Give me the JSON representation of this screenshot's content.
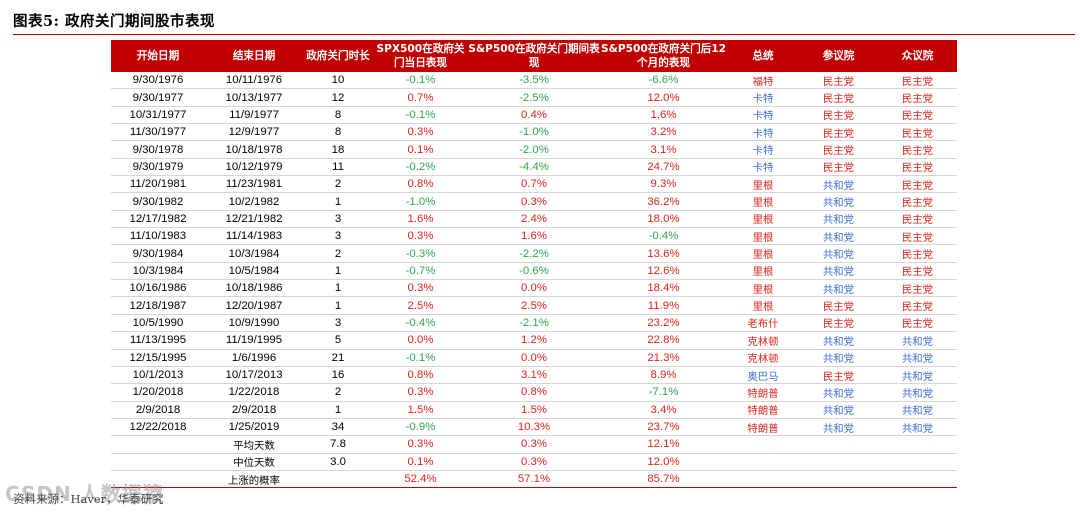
{
  "title": "图表5:   政府关门期间股市表现",
  "columns": [
    "开始日期",
    "结束日期",
    "政府关门时长",
    "SPX500在政府关门当日表现",
    "S&P500在政府关门期间表现",
    "S&P500在政府关门后12个月的表现",
    "总统",
    "参议院",
    "众议院"
  ],
  "rows": [
    [
      "9/30/1976",
      "10/11/1976",
      "10",
      "-0.1%",
      "-3.5%",
      "-6.6%",
      "福特",
      "民主党",
      "民主党"
    ],
    [
      "9/30/1977",
      "10/13/1977",
      "12",
      "0.7%",
      "-2.5%",
      "12.0%",
      "卡特",
      "民主党",
      "民主党"
    ],
    [
      "10/31/1977",
      "11/9/1977",
      "8",
      "-0.1%",
      "0.4%",
      "1.6%",
      "卡特",
      "民主党",
      "民主党"
    ],
    [
      "11/30/1977",
      "12/9/1977",
      "8",
      "0.3%",
      "-1.0%",
      "3.2%",
      "卡特",
      "民主党",
      "民主党"
    ],
    [
      "9/30/1978",
      "10/18/1978",
      "18",
      "0.1%",
      "-2.0%",
      "3.1%",
      "卡特",
      "民主党",
      "民主党"
    ],
    [
      "9/30/1979",
      "10/12/1979",
      "11",
      "-0.2%",
      "-4.4%",
      "24.7%",
      "卡特",
      "民主党",
      "民主党"
    ],
    [
      "11/20/1981",
      "11/23/1981",
      "2",
      "0.8%",
      "0.7%",
      "9.3%",
      "里根",
      "共和党",
      "民主党"
    ],
    [
      "9/30/1982",
      "10/2/1982",
      "1",
      "-1.0%",
      "0.3%",
      "36.2%",
      "里根",
      "共和党",
      "民主党"
    ],
    [
      "12/17/1982",
      "12/21/1982",
      "3",
      "1.6%",
      "2.4%",
      "18.0%",
      "里根",
      "共和党",
      "民主党"
    ],
    [
      "11/10/1983",
      "11/14/1983",
      "3",
      "0.3%",
      "1.6%",
      "-0.4%",
      "里根",
      "共和党",
      "民主党"
    ],
    [
      "9/30/1984",
      "10/3/1984",
      "2",
      "-0.3%",
      "-2.2%",
      "13.6%",
      "里根",
      "共和党",
      "民主党"
    ],
    [
      "10/3/1984",
      "10/5/1984",
      "1",
      "-0.7%",
      "-0.6%",
      "12.6%",
      "里根",
      "共和党",
      "民主党"
    ],
    [
      "10/16/1986",
      "10/18/1986",
      "1",
      "0.3%",
      "0.0%",
      "18.4%",
      "里根",
      "共和党",
      "民主党"
    ],
    [
      "12/18/1987",
      "12/20/1987",
      "1",
      "2.5%",
      "2.5%",
      "11.9%",
      "里根",
      "民主党",
      "民主党"
    ],
    [
      "10/5/1990",
      "10/9/1990",
      "3",
      "-0.4%",
      "-2.1%",
      "23.2%",
      "老布什",
      "民主党",
      "民主党"
    ],
    [
      "11/13/1995",
      "11/19/1995",
      "5",
      "0.0%",
      "1.2%",
      "22.8%",
      "克林顿",
      "共和党",
      "共和党"
    ],
    [
      "12/15/1995",
      "1/6/1996",
      "21",
      "-0.1%",
      "0.0%",
      "21.3%",
      "克林顿",
      "共和党",
      "共和党"
    ],
    [
      "10/1/2013",
      "10/17/2013",
      "16",
      "0.8%",
      "3.1%",
      "8.9%",
      "奥巴马",
      "民主党",
      "共和党"
    ],
    [
      "1/20/2018",
      "1/22/2018",
      "2",
      "0.3%",
      "0.8%",
      "-7.1%",
      "特朗普",
      "共和党",
      "共和党"
    ],
    [
      "2/9/2018",
      "2/9/2018",
      "1",
      "1.5%",
      "1.5%",
      "3.4%",
      "特朗普",
      "共和党",
      "共和党"
    ],
    [
      "12/22/2018",
      "1/25/2019",
      "34",
      "-0.9%",
      "10.3%",
      "23.7%",
      "特朗普",
      "共和党",
      "共和党"
    ]
  ],
  "stats": [
    {
      "label": "平均天数",
      "days": "7.8",
      "c1": "0.3%",
      "c2": "0.3%",
      "c3": "12.1%"
    },
    {
      "label": "中位天数",
      "days": "3.0",
      "c1": "0.1%",
      "c2": "0.3%",
      "c3": "12.0%"
    },
    {
      "label": "上涨的概率",
      "days": "",
      "c1": "52.4%",
      "c2": "57.1%",
      "c3": "85.7%"
    }
  ],
  "source": "资料来源：Haver，华泰研究",
  "watermark": "CSDN 人数据猿",
  "colors": {
    "header_bg": "#c00000",
    "positive": "#e1261c",
    "negative": "#2fa84a",
    "republican": "#3f6fd6",
    "democrat": "#e1261c"
  }
}
